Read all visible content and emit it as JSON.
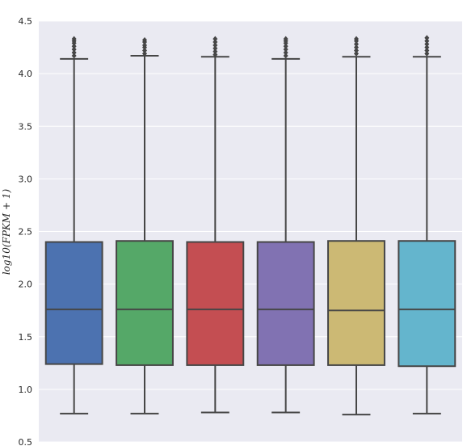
{
  "chart_data": {
    "type": "box",
    "title": "",
    "xlabel": "",
    "ylabel": "log10(FPKM + 1)",
    "ylim": [
      0.5,
      4.5
    ],
    "yticks": [
      "0.5",
      "1.0",
      "1.5",
      "2.0",
      "2.5",
      "3.0",
      "3.5",
      "4.0",
      "4.5"
    ],
    "ytick_values": [
      0.5,
      1.0,
      1.5,
      2.0,
      2.5,
      3.0,
      3.5,
      4.0,
      4.5
    ],
    "grid": true,
    "background": "#EAEAF2",
    "series": [
      {
        "color": "#4C72B0",
        "whisker_low": 0.77,
        "q1": 1.24,
        "median": 1.76,
        "q3": 2.4,
        "whisker_high": 4.14,
        "outliers": [
          4.17,
          4.2,
          4.23,
          4.26,
          4.29,
          4.31,
          4.33
        ]
      },
      {
        "color": "#55A868",
        "whisker_low": 0.77,
        "q1": 1.23,
        "median": 1.76,
        "q3": 2.41,
        "whisker_high": 4.17,
        "outliers": [
          4.19,
          4.22,
          4.25,
          4.27,
          4.3,
          4.32
        ]
      },
      {
        "color": "#C44E52",
        "whisker_low": 0.78,
        "q1": 1.23,
        "median": 1.76,
        "q3": 2.4,
        "whisker_high": 4.16,
        "outliers": [
          4.18,
          4.21,
          4.24,
          4.27,
          4.3,
          4.33
        ]
      },
      {
        "color": "#8172B2",
        "whisker_low": 0.78,
        "q1": 1.23,
        "median": 1.76,
        "q3": 2.4,
        "whisker_high": 4.14,
        "outliers": [
          4.17,
          4.2,
          4.23,
          4.26,
          4.29,
          4.31,
          4.33
        ]
      },
      {
        "color": "#CCB974",
        "whisker_low": 0.76,
        "q1": 1.23,
        "median": 1.75,
        "q3": 2.41,
        "whisker_high": 4.16,
        "outliers": [
          4.19,
          4.22,
          4.25,
          4.28,
          4.31,
          4.33
        ]
      },
      {
        "color": "#64B5CD",
        "whisker_low": 0.77,
        "q1": 1.22,
        "median": 1.76,
        "q3": 2.41,
        "whisker_high": 4.16,
        "outliers": [
          4.19,
          4.22,
          4.25,
          4.28,
          4.31,
          4.34
        ]
      }
    ]
  }
}
